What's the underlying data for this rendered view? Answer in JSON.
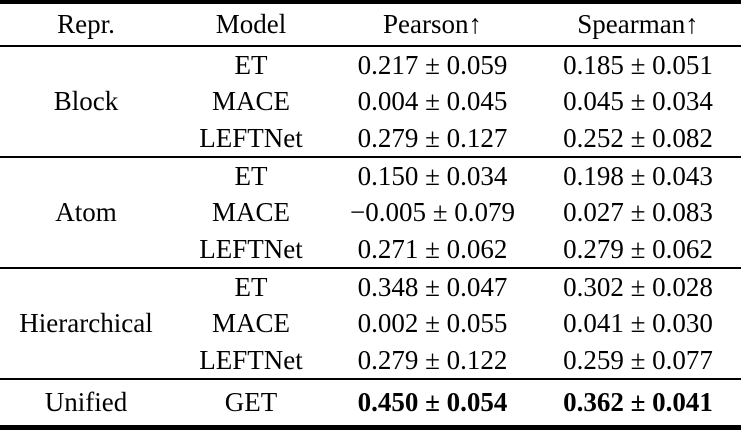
{
  "table": {
    "headers": {
      "repr": "Repr.",
      "model": "Model",
      "pearson": "Pearson↑",
      "spearman": "Spearman↑"
    },
    "groups": [
      {
        "repr": "Block",
        "rows": [
          {
            "model": "ET",
            "pearson": "0.217 ± 0.059",
            "spearman": "0.185 ± 0.051"
          },
          {
            "model": "MACE",
            "pearson": "0.004 ± 0.045",
            "spearman": "0.045 ± 0.034"
          },
          {
            "model": "LEFTNet",
            "pearson": "0.279 ± 0.127",
            "spearman": "0.252 ± 0.082"
          }
        ]
      },
      {
        "repr": "Atom",
        "rows": [
          {
            "model": "ET",
            "pearson": "0.150 ± 0.034",
            "spearman": "0.198 ± 0.043"
          },
          {
            "model": "MACE",
            "pearson": "−0.005 ± 0.079",
            "spearman": "0.027 ± 0.083"
          },
          {
            "model": "LEFTNet",
            "pearson": "0.271 ± 0.062",
            "spearman": "0.279 ± 0.062"
          }
        ]
      },
      {
        "repr": "Hierarchical",
        "rows": [
          {
            "model": "ET",
            "pearson": "0.348 ± 0.047",
            "spearman": "0.302 ± 0.028"
          },
          {
            "model": "MACE",
            "pearson": "0.002 ± 0.055",
            "spearman": "0.041 ± 0.030"
          },
          {
            "model": "LEFTNet",
            "pearson": "0.279 ± 0.122",
            "spearman": "0.259 ± 0.077"
          }
        ]
      },
      {
        "repr": "Unified",
        "rows": [
          {
            "model": "GET",
            "pearson": "0.450 ± 0.054",
            "spearman": "0.362 ± 0.041"
          }
        ]
      }
    ]
  }
}
